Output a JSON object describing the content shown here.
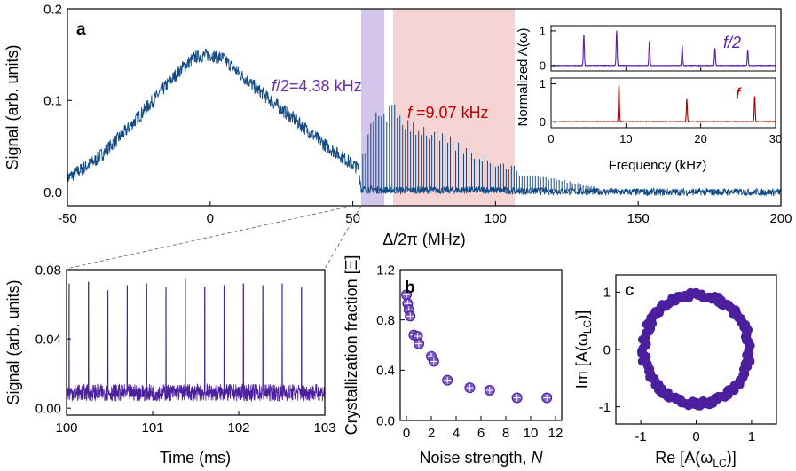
{
  "chart_data": [
    {
      "id": "a",
      "type": "line",
      "panel_label": "a",
      "xlabel": "Δ/2π (MHz)",
      "ylabel": "Signal (arb. units)",
      "xlim": [
        -50,
        200
      ],
      "ylim": [
        -0.015,
        0.2
      ],
      "xticks": [
        -50,
        0,
        50,
        100,
        150,
        200
      ],
      "yticks": [
        0.0,
        0.1,
        0.2
      ],
      "ytick_labels": [
        "0.0",
        "0.1",
        "0.2"
      ],
      "series_color": "#114a84",
      "series": [
        {
          "values_profile_x": [
            -50,
            -40,
            -30,
            -20,
            -10,
            -5,
            0,
            5,
            10,
            20,
            30,
            40,
            50,
            52,
            53,
            55,
            60,
            70,
            80,
            90,
            100,
            110,
            120,
            150,
            200
          ],
          "values_profile_y": [
            0.015,
            0.035,
            0.065,
            0.1,
            0.135,
            0.148,
            0.15,
            0.145,
            0.13,
            0.103,
            0.078,
            0.052,
            0.03,
            0.026,
            0.003,
            0.003,
            0.002,
            0.002,
            0.002,
            0.002,
            0.002,
            0.001,
            0.001,
            0.0,
            0.0
          ]
        }
      ],
      "comb_peaks": {
        "x_start": 53.5,
        "spacing": 0.93,
        "x_end": 135,
        "envelope_x": [
          53.5,
          58,
          60,
          65,
          70,
          80,
          90,
          100,
          110,
          120,
          135
        ],
        "envelope_y": [
          0.04,
          0.082,
          0.088,
          0.084,
          0.074,
          0.059,
          0.045,
          0.032,
          0.022,
          0.014,
          0.006
        ]
      },
      "shaded_regions": [
        {
          "x": [
            52.5,
            60.5
          ],
          "color": "#c8b7e6"
        },
        {
          "x": [
            63.5,
            107
          ],
          "color": "#f4cccc"
        }
      ],
      "annotations": [
        {
          "text": "f/2=4.38 kHz",
          "color": "#6a2ca8"
        },
        {
          "text": "f =9.07 kHz",
          "color": "#c00000"
        }
      ],
      "inset": {
        "xlabel": "Frequency (kHz)",
        "ylabel": "Normalized A(ω)",
        "xlim": [
          0,
          30
        ],
        "xticks": [
          0,
          10,
          20,
          30
        ],
        "yticks": [
          0,
          1
        ],
        "top": {
          "label": "f/2",
          "color": "#5a1fa8",
          "peaks_x": [
            4.38,
            8.76,
            13.14,
            17.52,
            21.9,
            26.28
          ],
          "peaks_y": [
            0.92,
            1.0,
            0.72,
            0.57,
            0.5,
            0.45
          ]
        },
        "bottom": {
          "label": "f",
          "color": "#b00000",
          "peaks_x": [
            9.07,
            18.14,
            27.21
          ],
          "peaks_y": [
            1.0,
            0.6,
            0.68
          ]
        }
      }
    },
    {
      "id": "a_zoom",
      "type": "line",
      "xlabel": "Time (ms)",
      "ylabel": "Signal (arb. units)",
      "xlim": [
        100,
        103
      ],
      "ylim": [
        -0.004,
        0.08
      ],
      "xticks": [
        100,
        101,
        102,
        103
      ],
      "yticks": [
        0.0,
        0.04,
        0.08
      ],
      "ytick_labels": [
        "0.00",
        "0.04",
        "0.08"
      ],
      "series_color": "#4b1f9e",
      "series": [
        {
          "spike_times": [
            100.03,
            100.255,
            100.48,
            100.705,
            100.93,
            101.155,
            101.38,
            101.605,
            101.83,
            102.055,
            102.28,
            102.505,
            102.73
          ],
          "spike_heights": [
            0.072,
            0.073,
            0.068,
            0.071,
            0.072,
            0.07,
            0.075,
            0.07,
            0.071,
            0.072,
            0.071,
            0.072,
            0.07
          ],
          "baseline_mean": 0.009,
          "baseline_noise": 0.005
        }
      ]
    },
    {
      "id": "b",
      "type": "scatter",
      "panel_label": "b",
      "xlabel": "Noise strength, N",
      "ylabel": "Crystallization fraction [Ξ]",
      "xlim": [
        -0.5,
        12.5
      ],
      "ylim": [
        0,
        1.2
      ],
      "xticks": [
        0,
        2,
        4,
        6,
        8,
        10,
        12
      ],
      "yticks": [
        0.0,
        0.4,
        0.8,
        1.2
      ],
      "ytick_labels": [
        "0.0",
        "0.4",
        "0.8",
        "1.2"
      ],
      "color": "#6b3fb8",
      "edge_color": "#4a1f9e",
      "x": [
        0.0,
        0.1,
        0.2,
        0.3,
        0.6,
        0.9,
        1.0,
        2.0,
        2.2,
        3.3,
        5.1,
        6.7,
        8.9,
        11.3
      ],
      "y": [
        1.0,
        0.93,
        0.88,
        0.83,
        0.68,
        0.67,
        0.61,
        0.51,
        0.47,
        0.32,
        0.26,
        0.24,
        0.18,
        0.18
      ]
    },
    {
      "id": "c",
      "type": "scatter",
      "panel_label": "c",
      "xlabel": "Re [A(ω_LC)]",
      "ylabel": "Im [A(ω_LC)]",
      "xlim": [
        -1.45,
        1.45
      ],
      "ylim": [
        -1.3,
        1.3
      ],
      "xticks": [
        -1,
        0,
        1
      ],
      "yticks": [
        -1,
        0,
        1
      ],
      "color": "#4b1f9e",
      "ring_radius": 0.95,
      "ring_jitter": 0.05,
      "n_points": 180
    }
  ]
}
